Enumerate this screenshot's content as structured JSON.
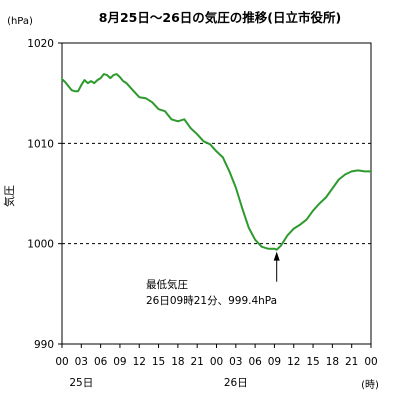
{
  "chart_data": {
    "type": "line",
    "title": "8月25日～26日の気圧の推移(日立市役所)",
    "ylabel": "気圧",
    "y_unit": "(hPa)",
    "x_unit": "(時)",
    "ylim": [
      990,
      1020
    ],
    "yticks": [
      1020,
      1010,
      1000,
      990
    ],
    "xlim": [
      0,
      48
    ],
    "xticks": [
      0,
      3,
      6,
      9,
      12,
      15,
      18,
      21,
      24,
      27,
      30,
      33,
      36,
      39,
      42,
      45,
      48
    ],
    "xtick_labels": [
      "00",
      "03",
      "06",
      "09",
      "12",
      "15",
      "18",
      "21",
      "00",
      "03",
      "06",
      "09",
      "12",
      "15",
      "18",
      "21",
      "00"
    ],
    "day_labels": [
      {
        "x": 3,
        "label": "25日"
      },
      {
        "x": 27,
        "label": "26日"
      }
    ],
    "reference_lines": [
      1010,
      1000
    ],
    "series": [
      {
        "color": "#2e9a2e",
        "x": [
          0,
          0.5,
          1,
          1.5,
          2,
          2.5,
          3,
          3.5,
          4,
          4.5,
          5,
          5.5,
          6,
          6.5,
          7,
          7.5,
          8,
          8.5,
          9,
          9.5,
          10,
          11,
          12,
          13,
          14,
          15,
          16,
          17,
          18,
          19,
          20,
          21,
          22,
          23,
          24,
          25,
          26,
          27,
          28,
          29,
          30,
          31,
          32,
          33,
          33.35,
          34,
          35,
          36,
          37,
          38,
          39,
          40,
          41,
          42,
          43,
          44,
          45,
          46,
          47,
          48
        ],
        "y": [
          1016.4,
          1016.1,
          1015.7,
          1015.3,
          1015.2,
          1015.2,
          1015.8,
          1016.3,
          1016.0,
          1016.2,
          1016.0,
          1016.3,
          1016.5,
          1016.9,
          1016.8,
          1016.5,
          1016.8,
          1016.9,
          1016.6,
          1016.2,
          1016.0,
          1015.3,
          1014.6,
          1014.5,
          1014.1,
          1013.4,
          1013.2,
          1012.4,
          1012.2,
          1012.4,
          1011.5,
          1010.9,
          1010.2,
          1009.9,
          1009.2,
          1008.6,
          1007.2,
          1005.6,
          1003.5,
          1001.6,
          1000.4,
          999.7,
          999.5,
          999.5,
          999.4,
          999.8,
          1000.8,
          1001.5,
          1001.9,
          1002.4,
          1003.3,
          1004.0,
          1004.6,
          1005.5,
          1006.4,
          1006.9,
          1007.2,
          1007.3,
          1007.2,
          1007.2
        ]
      }
    ],
    "annotation": {
      "line1": "最低気圧",
      "line2": "26日09時21分、999.4hPa",
      "x": 33.35,
      "y": 999.4
    }
  }
}
